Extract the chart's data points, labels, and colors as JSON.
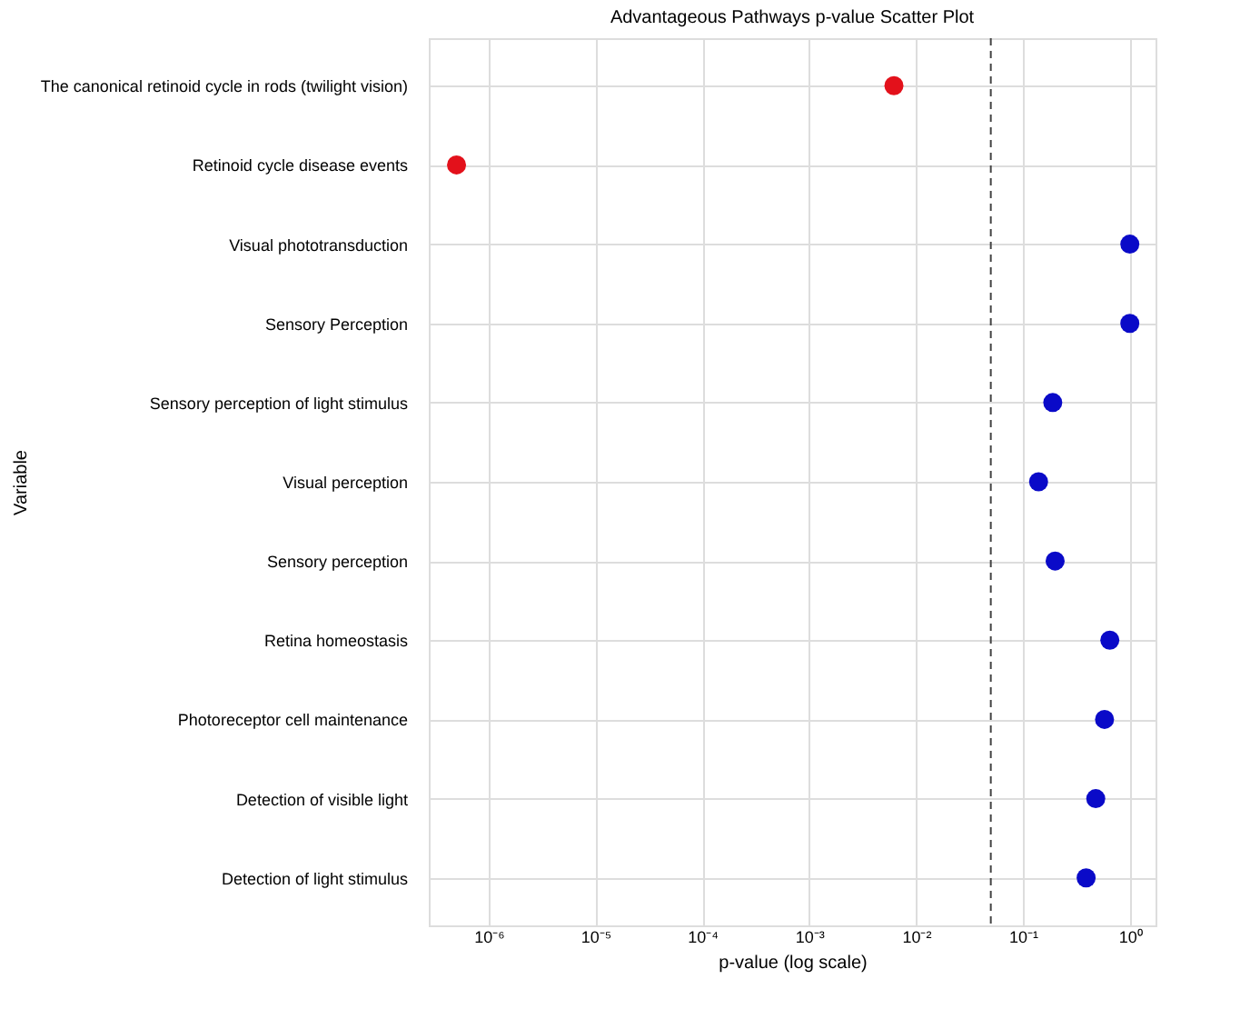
{
  "chart_data": {
    "type": "scatter",
    "title": "Advantageous Pathways p-value Scatter Plot",
    "xlabel": "p-value (log scale)",
    "ylabel": "Variable",
    "orientation": "horizontal",
    "log": "x",
    "grid": true,
    "marker": "circle",
    "categories": [
      "The canonical retinoid cycle in rods (twilight vision)",
      "Retinoid cycle disease events",
      "Visual phototransduction",
      "Sensory Perception",
      "Sensory perception of light stimulus",
      "Visual perception",
      "Sensory perception",
      "Retina homeostasis",
      "Photoreceptor cell maintenance",
      "Detection of visible light",
      "Detection of light stimulus"
    ],
    "series": [
      {
        "color": "#e3111b",
        "values": [
          0.0062,
          5e-07,
          null,
          null,
          null,
          null,
          null,
          null,
          null,
          null,
          null
        ]
      },
      {
        "color": "#0a0ac8",
        "values": [
          null,
          null,
          1.0,
          1.0,
          0.19,
          0.14,
          0.2,
          0.65,
          0.58,
          0.48,
          0.39
        ]
      }
    ],
    "xlim": [
      2.75e-07,
      1.74
    ],
    "xticks": [
      {
        "value": 1e-06,
        "label": "10⁻⁶"
      },
      {
        "value": 1e-05,
        "label": "10⁻⁵"
      },
      {
        "value": 0.0001,
        "label": "10⁻⁴"
      },
      {
        "value": 0.001,
        "label": "10⁻³"
      },
      {
        "value": 0.01,
        "label": "10⁻²"
      },
      {
        "value": 0.1,
        "label": "10⁻¹"
      },
      {
        "value": 1,
        "label": "10⁰"
      }
    ],
    "ref_lines": [
      {
        "axis": "x",
        "value": 0.05,
        "color": "#444444",
        "line_style": "dashed"
      }
    ]
  }
}
